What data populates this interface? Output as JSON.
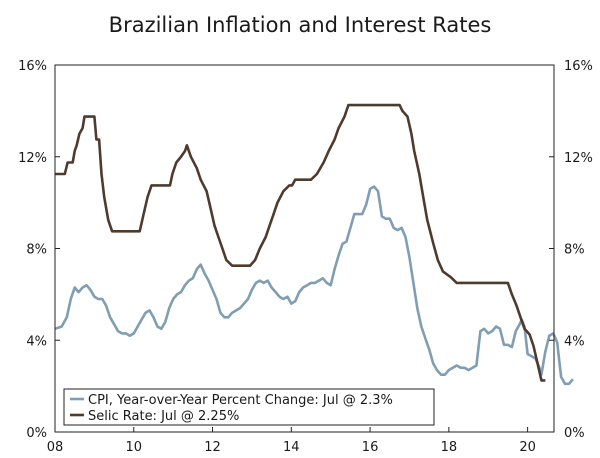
{
  "chart_data": {
    "type": "line",
    "title": "Brazilian Inflation and Interest Rates",
    "xlabel": "",
    "ylabel": "",
    "xlim": [
      2008,
      2020.67
    ],
    "ylim": [
      0,
      16
    ],
    "x_ticks": [
      2008,
      2010,
      2012,
      2014,
      2016,
      2018,
      2020
    ],
    "x_tick_labels": [
      "08",
      "10",
      "12",
      "14",
      "16",
      "18",
      "20"
    ],
    "y_ticks": [
      0,
      4,
      8,
      12,
      16
    ],
    "y_tick_labels": [
      "0%",
      "4%",
      "8%",
      "12%",
      "16%"
    ],
    "y_ticks_right": [
      0,
      4,
      8,
      12,
      16
    ],
    "y_tick_labels_right": [
      "0%",
      "4%",
      "8%",
      "12%",
      "16%"
    ],
    "grid": false,
    "legend_position": "bottom-left",
    "series": [
      {
        "name": "CPI, Year-over-Year Percent Change: Jul @ 2.3%",
        "color": "#7f9eb3",
        "points": [
          [
            2008.0,
            4.5
          ],
          [
            2008.17,
            4.6
          ],
          [
            2008.3,
            5.0
          ],
          [
            2008.4,
            5.8
          ],
          [
            2008.5,
            6.3
          ],
          [
            2008.6,
            6.1
          ],
          [
            2008.7,
            6.3
          ],
          [
            2008.8,
            6.4
          ],
          [
            2008.9,
            6.2
          ],
          [
            2009.0,
            5.9
          ],
          [
            2009.1,
            5.8
          ],
          [
            2009.2,
            5.8
          ],
          [
            2009.3,
            5.5
          ],
          [
            2009.4,
            5.0
          ],
          [
            2009.5,
            4.7
          ],
          [
            2009.6,
            4.4
          ],
          [
            2009.7,
            4.3
          ],
          [
            2009.8,
            4.3
          ],
          [
            2009.9,
            4.2
          ],
          [
            2010.0,
            4.3
          ],
          [
            2010.1,
            4.6
          ],
          [
            2010.2,
            4.9
          ],
          [
            2010.3,
            5.2
          ],
          [
            2010.4,
            5.3
          ],
          [
            2010.5,
            5.0
          ],
          [
            2010.6,
            4.6
          ],
          [
            2010.7,
            4.5
          ],
          [
            2010.8,
            4.8
          ],
          [
            2010.9,
            5.4
          ],
          [
            2011.0,
            5.8
          ],
          [
            2011.1,
            6.0
          ],
          [
            2011.2,
            6.1
          ],
          [
            2011.3,
            6.4
          ],
          [
            2011.4,
            6.6
          ],
          [
            2011.5,
            6.7
          ],
          [
            2011.6,
            7.1
          ],
          [
            2011.7,
            7.3
          ],
          [
            2011.8,
            6.9
          ],
          [
            2011.9,
            6.6
          ],
          [
            2012.0,
            6.2
          ],
          [
            2012.1,
            5.8
          ],
          [
            2012.2,
            5.2
          ],
          [
            2012.3,
            5.0
          ],
          [
            2012.4,
            5.0
          ],
          [
            2012.5,
            5.2
          ],
          [
            2012.6,
            5.3
          ],
          [
            2012.7,
            5.4
          ],
          [
            2012.8,
            5.6
          ],
          [
            2012.9,
            5.8
          ],
          [
            2013.0,
            6.2
          ],
          [
            2013.1,
            6.5
          ],
          [
            2013.2,
            6.6
          ],
          [
            2013.3,
            6.5
          ],
          [
            2013.4,
            6.6
          ],
          [
            2013.5,
            6.3
          ],
          [
            2013.6,
            6.1
          ],
          [
            2013.7,
            5.9
          ],
          [
            2013.8,
            5.8
          ],
          [
            2013.9,
            5.9
          ],
          [
            2014.0,
            5.6
          ],
          [
            2014.1,
            5.7
          ],
          [
            2014.2,
            6.1
          ],
          [
            2014.3,
            6.3
          ],
          [
            2014.4,
            6.4
          ],
          [
            2014.5,
            6.5
          ],
          [
            2014.6,
            6.5
          ],
          [
            2014.7,
            6.6
          ],
          [
            2014.8,
            6.7
          ],
          [
            2014.9,
            6.5
          ],
          [
            2015.0,
            6.4
          ],
          [
            2015.1,
            7.1
          ],
          [
            2015.2,
            7.7
          ],
          [
            2015.3,
            8.2
          ],
          [
            2015.4,
            8.3
          ],
          [
            2015.5,
            8.9
          ],
          [
            2015.6,
            9.5
          ],
          [
            2015.7,
            9.5
          ],
          [
            2015.8,
            9.5
          ],
          [
            2015.9,
            9.9
          ],
          [
            2016.0,
            10.6
          ],
          [
            2016.1,
            10.7
          ],
          [
            2016.2,
            10.5
          ],
          [
            2016.3,
            9.4
          ],
          [
            2016.4,
            9.3
          ],
          [
            2016.5,
            9.3
          ],
          [
            2016.6,
            8.9
          ],
          [
            2016.7,
            8.8
          ],
          [
            2016.8,
            8.9
          ],
          [
            2016.9,
            8.5
          ],
          [
            2017.0,
            7.6
          ],
          [
            2017.1,
            6.5
          ],
          [
            2017.2,
            5.4
          ],
          [
            2017.3,
            4.6
          ],
          [
            2017.4,
            4.1
          ],
          [
            2017.5,
            3.6
          ],
          [
            2017.6,
            3.0
          ],
          [
            2017.7,
            2.7
          ],
          [
            2017.8,
            2.5
          ],
          [
            2017.9,
            2.5
          ],
          [
            2018.0,
            2.7
          ],
          [
            2018.1,
            2.8
          ],
          [
            2018.2,
            2.9
          ],
          [
            2018.3,
            2.8
          ],
          [
            2018.4,
            2.8
          ],
          [
            2018.5,
            2.7
          ],
          [
            2018.6,
            2.8
          ],
          [
            2018.7,
            2.9
          ],
          [
            2018.8,
            4.4
          ],
          [
            2018.9,
            4.5
          ],
          [
            2019.0,
            4.3
          ],
          [
            2019.1,
            4.4
          ],
          [
            2019.2,
            4.6
          ],
          [
            2019.3,
            4.5
          ],
          [
            2019.4,
            3.8
          ],
          [
            2019.5,
            3.8
          ],
          [
            2019.6,
            3.7
          ],
          [
            2019.7,
            4.4
          ],
          [
            2019.8,
            4.7
          ],
          [
            2019.85,
            4.9
          ],
          [
            2019.92,
            4.6
          ],
          [
            2020.0,
            3.4
          ],
          [
            2020.1,
            3.3
          ],
          [
            2020.2,
            3.2
          ],
          [
            2020.3,
            2.8
          ],
          [
            2020.35,
            2.5
          ],
          [
            2020.45,
            3.5
          ],
          [
            2020.55,
            4.2
          ],
          [
            2020.65,
            4.3
          ],
          [
            2020.75,
            3.9
          ],
          [
            2020.85,
            2.4
          ],
          [
            2020.95,
            2.1
          ],
          [
            2021.05,
            2.1
          ],
          [
            2021.15,
            2.3
          ]
        ]
      },
      {
        "name": "Selic Rate: Jul @ 2.25%",
        "color": "#4f3a2e",
        "points": [
          [
            2008.0,
            11.25
          ],
          [
            2008.25,
            11.25
          ],
          [
            2008.32,
            11.75
          ],
          [
            2008.45,
            11.75
          ],
          [
            2008.5,
            12.25
          ],
          [
            2008.55,
            12.5
          ],
          [
            2008.62,
            13.0
          ],
          [
            2008.7,
            13.25
          ],
          [
            2008.75,
            13.75
          ],
          [
            2009.0,
            13.75
          ],
          [
            2009.05,
            12.75
          ],
          [
            2009.12,
            12.75
          ],
          [
            2009.18,
            11.25
          ],
          [
            2009.25,
            10.25
          ],
          [
            2009.35,
            9.25
          ],
          [
            2009.45,
            8.75
          ],
          [
            2010.15,
            8.75
          ],
          [
            2010.25,
            9.5
          ],
          [
            2010.35,
            10.25
          ],
          [
            2010.45,
            10.75
          ],
          [
            2010.92,
            10.75
          ],
          [
            2010.98,
            11.25
          ],
          [
            2011.08,
            11.75
          ],
          [
            2011.2,
            12.0
          ],
          [
            2011.3,
            12.25
          ],
          [
            2011.35,
            12.5
          ],
          [
            2011.45,
            12.0
          ],
          [
            2011.6,
            11.5
          ],
          [
            2011.7,
            11.0
          ],
          [
            2011.85,
            10.5
          ],
          [
            2011.95,
            9.75
          ],
          [
            2012.05,
            9.0
          ],
          [
            2012.15,
            8.5
          ],
          [
            2012.25,
            8.0
          ],
          [
            2012.35,
            7.5
          ],
          [
            2012.5,
            7.25
          ],
          [
            2012.95,
            7.25
          ],
          [
            2013.08,
            7.5
          ],
          [
            2013.2,
            8.0
          ],
          [
            2013.35,
            8.5
          ],
          [
            2013.45,
            9.0
          ],
          [
            2013.55,
            9.5
          ],
          [
            2013.65,
            10.0
          ],
          [
            2013.8,
            10.5
          ],
          [
            2013.95,
            10.75
          ],
          [
            2014.02,
            10.75
          ],
          [
            2014.1,
            11.0
          ],
          [
            2014.5,
            11.0
          ],
          [
            2014.65,
            11.25
          ],
          [
            2014.82,
            11.75
          ],
          [
            2014.95,
            12.25
          ],
          [
            2015.1,
            12.75
          ],
          [
            2015.2,
            13.25
          ],
          [
            2015.35,
            13.75
          ],
          [
            2015.45,
            14.25
          ],
          [
            2016.75,
            14.25
          ],
          [
            2016.82,
            14.0
          ],
          [
            2016.95,
            13.75
          ],
          [
            2017.05,
            13.0
          ],
          [
            2017.12,
            12.25
          ],
          [
            2017.25,
            11.25
          ],
          [
            2017.35,
            10.25
          ],
          [
            2017.45,
            9.25
          ],
          [
            2017.6,
            8.25
          ],
          [
            2017.72,
            7.5
          ],
          [
            2017.85,
            7.0
          ],
          [
            2018.05,
            6.75
          ],
          [
            2018.2,
            6.5
          ],
          [
            2019.5,
            6.5
          ],
          [
            2019.6,
            6.0
          ],
          [
            2019.72,
            5.5
          ],
          [
            2019.82,
            5.0
          ],
          [
            2019.92,
            4.5
          ],
          [
            2020.05,
            4.25
          ],
          [
            2020.15,
            3.75
          ],
          [
            2020.25,
            3.0
          ],
          [
            2020.35,
            2.25
          ],
          [
            2020.45,
            2.25
          ]
        ]
      }
    ]
  }
}
